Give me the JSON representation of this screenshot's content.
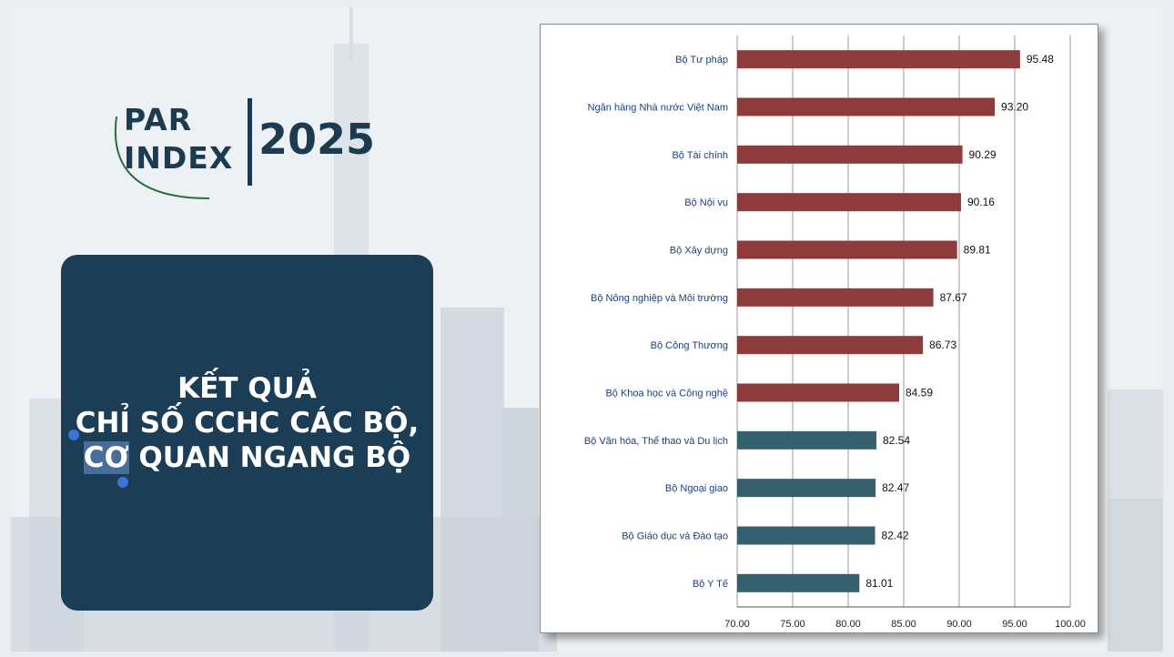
{
  "logo": {
    "line1": "PAR",
    "line2": "INDEX",
    "year": "2025"
  },
  "card": {
    "line1": "KẾT QUẢ",
    "line2": "CHỈ SỐ CCHC CÁC BỘ,",
    "line3_selected": "CƠ",
    "line3_rest": " QUAN NGANG BỘ"
  },
  "colors": {
    "high": "#8e3b3b",
    "low": "#36606d",
    "card": "#1b3d55",
    "text": "#1d3b50"
  },
  "chart_data": {
    "type": "bar",
    "orientation": "horizontal",
    "title": "",
    "xlabel": "",
    "ylabel": "",
    "xlim": [
      70,
      100
    ],
    "ticks": [
      "70.00",
      "75.00",
      "80.00",
      "85.00",
      "90.00",
      "95.00",
      "100.00"
    ],
    "grid": true,
    "categories": [
      "Bộ Tư pháp",
      "Ngân hàng Nhà nước Việt Nam",
      "Bộ Tài chính",
      "Bộ Nội vụ",
      "Bộ Xây dựng",
      "Bộ Nông nghiệp và Môi trường",
      "Bộ Công Thương",
      "Bộ Khoa học và Công nghệ",
      "Bộ Văn hóa, Thể thao và Du lịch",
      "Bộ Ngoại giao",
      "Bộ Giáo dục và Đào tạo",
      "Bộ Y Tế"
    ],
    "values": [
      95.48,
      93.2,
      90.29,
      90.16,
      89.81,
      87.67,
      86.73,
      84.59,
      82.54,
      82.47,
      82.42,
      81.01
    ],
    "value_labels": [
      "95.48",
      "93.20",
      "90.29",
      "90.16",
      "89.81",
      "87.67",
      "86.73",
      "84.59",
      "82.54",
      "82.47",
      "82.42",
      "81.01"
    ],
    "bar_groups": [
      "high",
      "high",
      "high",
      "high",
      "high",
      "high",
      "high",
      "high",
      "low",
      "low",
      "low",
      "low"
    ]
  }
}
